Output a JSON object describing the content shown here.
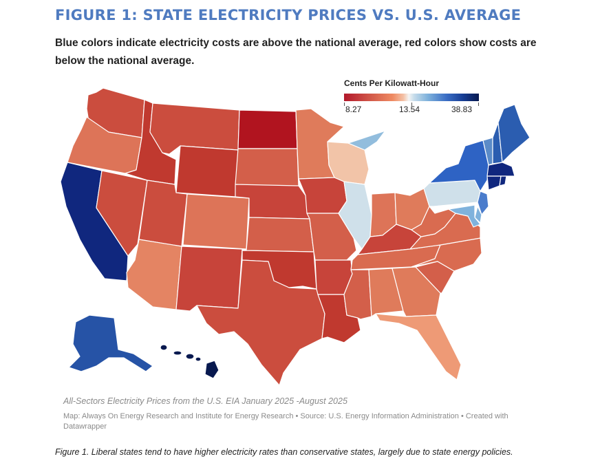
{
  "header": {
    "title": "FIGURE 1: STATE ELECTRICITY PRICES VS. U.S. AVERAGE",
    "subtitle": "Blue colors indicate electricity costs are above the national average, red colors show costs are below the national average."
  },
  "chart_data": {
    "type": "choropleth",
    "title": "FIGURE 1: STATE ELECTRICITY PRICES VS. U.S. AVERAGE",
    "unit": "Cents Per Kilowatt-Hour",
    "legend": {
      "title": "Cents Per Kilowatt-Hour",
      "min": 8.27,
      "mid": 13.54,
      "max": 38.83,
      "labels": [
        "8.27",
        "13.54",
        "38.83"
      ],
      "colors": [
        "#b2182b",
        "#f4f4f4",
        "#08194f"
      ],
      "placement": "top-right"
    },
    "states": {
      "WA": "#cb4d3e",
      "OR": "#dd7458",
      "CA": "#10277e",
      "NV": "#cb4d3e",
      "ID": "#c0392f",
      "MT": "#cb4d3e",
      "WY": "#c0392f",
      "UT": "#cb4d3e",
      "AZ": "#e48463",
      "CO": "#dd7458",
      "NM": "#c7443a",
      "ND": "#b1141f",
      "SD": "#d35f4a",
      "NE": "#c7443a",
      "KS": "#d35f4a",
      "OK": "#c0392f",
      "TX": "#cb4d3e",
      "MN": "#df7b5b",
      "IA": "#c7443a",
      "MO": "#d35f4a",
      "AR": "#c7443a",
      "LA": "#c0392f",
      "WI": "#f2c4a8",
      "IL": "#cfe0ea",
      "MI": "#92bddd",
      "IN": "#dd7458",
      "OH": "#df7b5b",
      "KY": "#c7443a",
      "TN": "#d96b50",
      "MS": "#d35f4a",
      "AL": "#df7b5b",
      "GA": "#df7b5b",
      "FL": "#ee9a76",
      "SC": "#d35f4a",
      "NC": "#d96b50",
      "VA": "#d96b50",
      "WV": "#d96b50",
      "PA": "#cfe0ea",
      "NY": "#2e63c4",
      "VT": "#5b8bc8",
      "NH": "#2b5db0",
      "ME": "#2b5db0",
      "MA": "#10277e",
      "RI": "#10277e",
      "CT": "#10277e",
      "NJ": "#4a7ccc",
      "DE": "#7fb2dc",
      "MD": "#7fb2dc",
      "AK": "#2653a6",
      "HI": "#08194f"
    }
  },
  "footer": {
    "caption": "All-Sectors Electricity Prices from the U.S. EIA January 2025 -August 2025",
    "credit": "Map: Always On Energy Research and Institute for Energy Research • Source: U.S. Energy Information Administration • Created with Datawrapper",
    "figure_caption": "Figure 1. Liberal states tend to have higher electricity rates than conservative states, largely due to state energy policies."
  }
}
